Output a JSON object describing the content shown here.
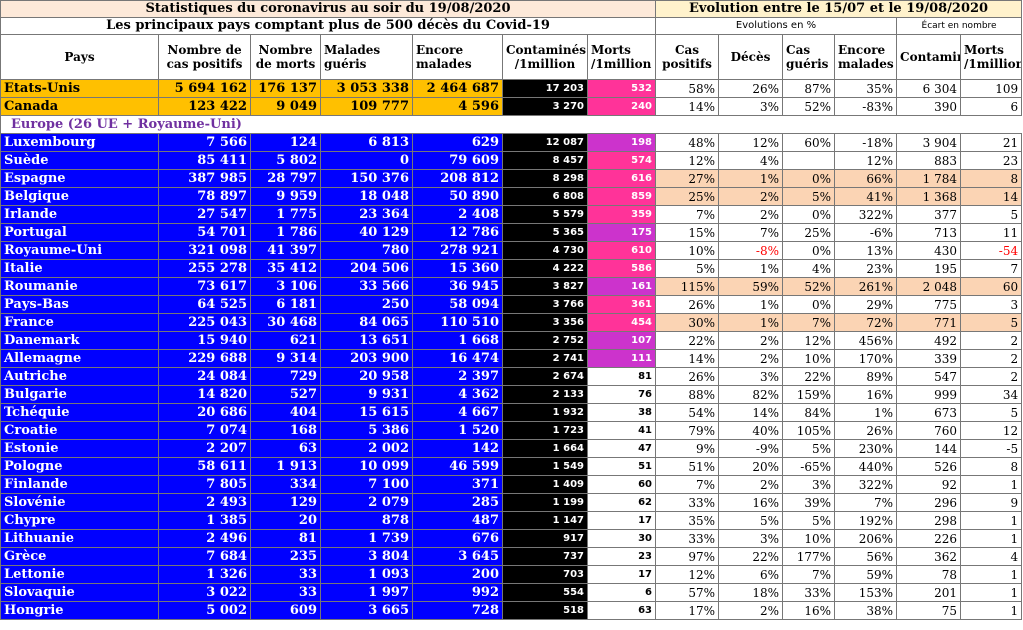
{
  "title_left": "Statistiques du coronavirus au soir du 19/08/2020",
  "title_right": "Evolution entre le 15/07 et le 19/08/2020",
  "subtitle_left": "Les principaux pays comptant plus de 500 décès du Covid-19",
  "subtitle_right_pct": "Evolutions en %",
  "subtitle_right_abs": "Écart en nombre",
  "headers": {
    "pays": "Pays",
    "positifs": "Nombre de cas positifs",
    "morts": "Nombre de morts",
    "gueris": "Malades guéris",
    "malades": "Encore malades",
    "contamines_m": "Contaminés /1million",
    "morts_m": "Morts /1million",
    "evo_positifs": "Cas positifs",
    "evo_deces": "Décès",
    "evo_gueris": "Cas guéris",
    "evo_malades": "Encore malades",
    "ecart_contamines": "Contaminés/1million",
    "ecart_morts": "Morts /1million"
  },
  "group_label": "Europe (26 UE + Royaume-Uni)",
  "north_america": [
    {
      "pays": "Etats-Unis",
      "positifs": "5 694 162",
      "morts": "176 137",
      "gueris": "3 053 338",
      "malades": "2 464 687",
      "cm": "17 203",
      "mm": "532",
      "e1": "58%",
      "e2": "26%",
      "e3": "87%",
      "e4": "35%",
      "d1": "6 304",
      "d2": "109",
      "mcol": "pink"
    },
    {
      "pays": "Canada",
      "positifs": "123 422",
      "morts": "9 049",
      "gueris": "109 777",
      "malades": "4 596",
      "cm": "3 270",
      "mm": "240",
      "e1": "14%",
      "e2": "3%",
      "e3": "52%",
      "e4": "-83%",
      "d1": "390",
      "d2": "6",
      "mcol": "pink"
    }
  ],
  "europe": [
    {
      "pays": "Luxembourg",
      "positifs": "7 566",
      "morts": "124",
      "gueris": "6 813",
      "malades": "629",
      "cm": "12 087",
      "mm": "198",
      "e1": "48%",
      "e2": "12%",
      "e3": "60%",
      "e4": "-18%",
      "d1": "3 904",
      "d2": "21",
      "mcol": "mag"
    },
    {
      "pays": "Suède",
      "positifs": "85 411",
      "morts": "5 802",
      "gueris": "0",
      "malades": "79 609",
      "cm": "8 457",
      "mm": "574",
      "e1": "12%",
      "e2": "4%",
      "e3": "",
      "e4": "12%",
      "d1": "883",
      "d2": "23",
      "mcol": "pink"
    },
    {
      "pays": "Espagne",
      "positifs": "387 985",
      "morts": "28 797",
      "gueris": "150 376",
      "malades": "208 812",
      "cm": "8 298",
      "mm": "616",
      "e1": "27%",
      "e2": "1%",
      "e3": "0%",
      "e4": "66%",
      "d1": "1 784",
      "d2": "8",
      "mcol": "pink",
      "hl": true
    },
    {
      "pays": "Belgique",
      "positifs": "78 897",
      "morts": "9 959",
      "gueris": "18 048",
      "malades": "50 890",
      "cm": "6 808",
      "mm": "859",
      "e1": "25%",
      "e2": "2%",
      "e3": "5%",
      "e4": "41%",
      "d1": "1 368",
      "d2": "14",
      "mcol": "pink",
      "hl": true
    },
    {
      "pays": "Irlande",
      "positifs": "27 547",
      "morts": "1 775",
      "gueris": "23 364",
      "malades": "2 408",
      "cm": "5 579",
      "mm": "359",
      "e1": "7%",
      "e2": "2%",
      "e3": "0%",
      "e4": "322%",
      "d1": "377",
      "d2": "5",
      "mcol": "pink"
    },
    {
      "pays": "Portugal",
      "positifs": "54 701",
      "morts": "1 786",
      "gueris": "40 129",
      "malades": "12 786",
      "cm": "5 365",
      "mm": "175",
      "e1": "15%",
      "e2": "7%",
      "e3": "25%",
      "e4": "-6%",
      "d1": "713",
      "d2": "11",
      "mcol": "mag"
    },
    {
      "pays": "Royaume-Uni",
      "positifs": "321 098",
      "morts": "41 397",
      "gueris": "780",
      "malades": "278 921",
      "cm": "4 730",
      "mm": "610",
      "e1": "10%",
      "e2": "-8%",
      "e3": "0%",
      "e4": "13%",
      "d1": "430",
      "d2": "-54",
      "mcol": "pink",
      "neg": true
    },
    {
      "pays": "Italie",
      "positifs": "255 278",
      "morts": "35 412",
      "gueris": "204 506",
      "malades": "15 360",
      "cm": "4 222",
      "mm": "586",
      "e1": "5%",
      "e2": "1%",
      "e3": "4%",
      "e4": "23%",
      "d1": "195",
      "d2": "7",
      "mcol": "pink"
    },
    {
      "pays": "Roumanie",
      "positifs": "73 617",
      "morts": "3 106",
      "gueris": "33 566",
      "malades": "36 945",
      "cm": "3 827",
      "mm": "161",
      "e1": "115%",
      "e2": "59%",
      "e3": "52%",
      "e4": "261%",
      "d1": "2 048",
      "d2": "60",
      "mcol": "mag",
      "hl": true
    },
    {
      "pays": "Pays-Bas",
      "positifs": "64 525",
      "morts": "6 181",
      "gueris": "250",
      "malades": "58 094",
      "cm": "3 766",
      "mm": "361",
      "e1": "26%",
      "e2": "1%",
      "e3": "0%",
      "e4": "29%",
      "d1": "775",
      "d2": "3",
      "mcol": "pink"
    },
    {
      "pays": "France",
      "positifs": "225 043",
      "morts": "30 468",
      "gueris": "84 065",
      "malades": "110 510",
      "cm": "3 356",
      "mm": "454",
      "e1": "30%",
      "e2": "1%",
      "e3": "7%",
      "e4": "72%",
      "d1": "771",
      "d2": "5",
      "mcol": "pink",
      "hl": true
    },
    {
      "pays": "Danemark",
      "positifs": "15 940",
      "morts": "621",
      "gueris": "13 651",
      "malades": "1 668",
      "cm": "2 752",
      "mm": "107",
      "e1": "22%",
      "e2": "2%",
      "e3": "12%",
      "e4": "456%",
      "d1": "492",
      "d2": "2",
      "mcol": "mag"
    },
    {
      "pays": "Allemagne",
      "positifs": "229 688",
      "morts": "9 314",
      "gueris": "203 900",
      "malades": "16 474",
      "cm": "2 741",
      "mm": "111",
      "e1": "14%",
      "e2": "2%",
      "e3": "10%",
      "e4": "170%",
      "d1": "339",
      "d2": "2",
      "mcol": "mag"
    },
    {
      "pays": "Autriche",
      "positifs": "24 084",
      "morts": "729",
      "gueris": "20 958",
      "malades": "2 397",
      "cm": "2 674",
      "mm": "81",
      "e1": "26%",
      "e2": "3%",
      "e3": "22%",
      "e4": "89%",
      "d1": "547",
      "d2": "2",
      "mcol": "plain"
    },
    {
      "pays": "Bulgarie",
      "positifs": "14 820",
      "morts": "527",
      "gueris": "9 931",
      "malades": "4 362",
      "cm": "2 133",
      "mm": "76",
      "e1": "88%",
      "e2": "82%",
      "e3": "159%",
      "e4": "16%",
      "d1": "999",
      "d2": "34",
      "mcol": "plain"
    },
    {
      "pays": "Tchéquie",
      "positifs": "20 686",
      "morts": "404",
      "gueris": "15 615",
      "malades": "4 667",
      "cm": "1 932",
      "mm": "38",
      "e1": "54%",
      "e2": "14%",
      "e3": "84%",
      "e4": "1%",
      "d1": "673",
      "d2": "5",
      "mcol": "plain"
    },
    {
      "pays": "Croatie",
      "positifs": "7 074",
      "morts": "168",
      "gueris": "5 386",
      "malades": "1 520",
      "cm": "1 723",
      "mm": "41",
      "e1": "79%",
      "e2": "40%",
      "e3": "105%",
      "e4": "26%",
      "d1": "760",
      "d2": "12",
      "mcol": "plain"
    },
    {
      "pays": "Estonie",
      "positifs": "2 207",
      "morts": "63",
      "gueris": "2 002",
      "malades": "142",
      "cm": "1 664",
      "mm": "47",
      "e1": "9%",
      "e2": "-9%",
      "e3": "5%",
      "e4": "230%",
      "d1": "144",
      "d2": "-5",
      "mcol": "plain"
    },
    {
      "pays": "Pologne",
      "positifs": "58 611",
      "morts": "1 913",
      "gueris": "10 099",
      "malades": "46 599",
      "cm": "1 549",
      "mm": "51",
      "e1": "51%",
      "e2": "20%",
      "e3": "-65%",
      "e4": "440%",
      "d1": "526",
      "d2": "8",
      "mcol": "plain"
    },
    {
      "pays": "Finlande",
      "positifs": "7 805",
      "morts": "334",
      "gueris": "7 100",
      "malades": "371",
      "cm": "1 409",
      "mm": "60",
      "e1": "7%",
      "e2": "2%",
      "e3": "3%",
      "e4": "322%",
      "d1": "92",
      "d2": "1",
      "mcol": "plain"
    },
    {
      "pays": "Slovénie",
      "positifs": "2 493",
      "morts": "129",
      "gueris": "2 079",
      "malades": "285",
      "cm": "1 199",
      "mm": "62",
      "e1": "33%",
      "e2": "16%",
      "e3": "39%",
      "e4": "7%",
      "d1": "296",
      "d2": "9",
      "mcol": "plain"
    },
    {
      "pays": "Chypre",
      "positifs": "1 385",
      "morts": "20",
      "gueris": "878",
      "malades": "487",
      "cm": "1 147",
      "mm": "17",
      "e1": "35%",
      "e2": "5%",
      "e3": "5%",
      "e4": "192%",
      "d1": "298",
      "d2": "1",
      "mcol": "plain"
    },
    {
      "pays": "Lithuanie",
      "positifs": "2 496",
      "morts": "81",
      "gueris": "1 739",
      "malades": "676",
      "cm": "917",
      "mm": "30",
      "e1": "33%",
      "e2": "3%",
      "e3": "10%",
      "e4": "206%",
      "d1": "226",
      "d2": "1",
      "mcol": "plain"
    },
    {
      "pays": "Grèce",
      "positifs": "7 684",
      "morts": "235",
      "gueris": "3 804",
      "malades": "3 645",
      "cm": "737",
      "mm": "23",
      "e1": "97%",
      "e2": "22%",
      "e3": "177%",
      "e4": "56%",
      "d1": "362",
      "d2": "4",
      "mcol": "plain"
    },
    {
      "pays": "Lettonie",
      "positifs": "1 326",
      "morts": "33",
      "gueris": "1 093",
      "malades": "200",
      "cm": "703",
      "mm": "17",
      "e1": "12%",
      "e2": "6%",
      "e3": "7%",
      "e4": "59%",
      "d1": "78",
      "d2": "1",
      "mcol": "plain"
    },
    {
      "pays": "Slovaquie",
      "positifs": "3 022",
      "morts": "33",
      "gueris": "1 997",
      "malades": "992",
      "cm": "554",
      "mm": "6",
      "e1": "57%",
      "e2": "18%",
      "e3": "33%",
      "e4": "153%",
      "d1": "201",
      "d2": "1",
      "mcol": "plain"
    },
    {
      "pays": "Hongrie",
      "positifs": "5 002",
      "morts": "609",
      "gueris": "3 665",
      "malades": "728",
      "cm": "518",
      "mm": "63",
      "e1": "17%",
      "e2": "2%",
      "e3": "16%",
      "e4": "38%",
      "d1": "75",
      "d2": "1",
      "mcol": "plain"
    }
  ],
  "colors": {
    "orange": "#ffc000",
    "eu_blue": "#0000ff",
    "contamines_bg": "#000000",
    "morts_pink": "#ff3399",
    "morts_magenta": "#cc33cc",
    "highlight": "#fbd4b4",
    "negative": "#ff0000",
    "group_label": "#7030a0"
  }
}
